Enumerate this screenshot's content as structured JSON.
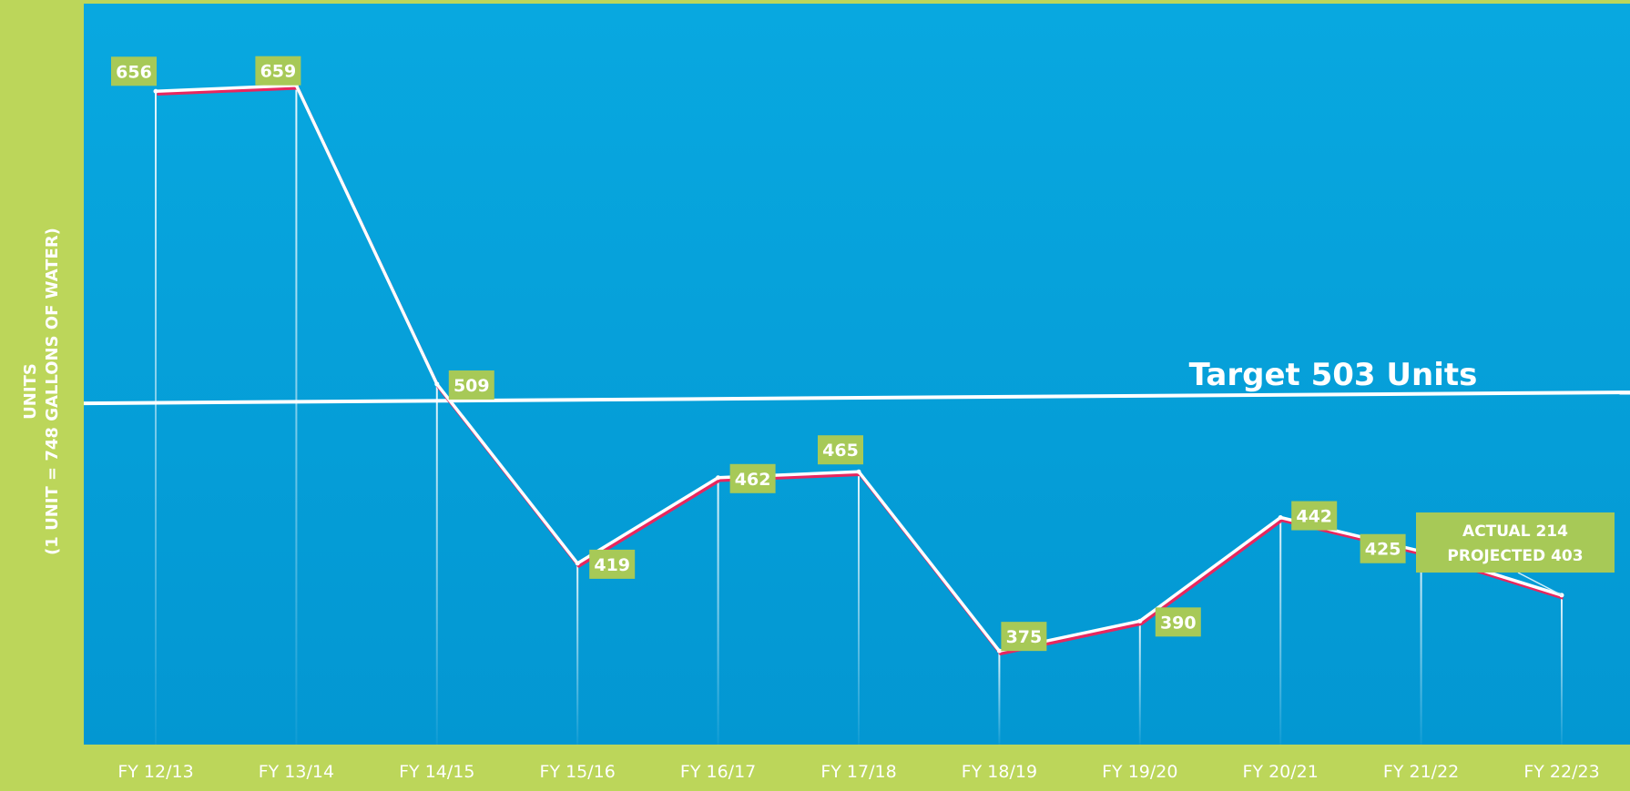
{
  "chart_data": {
    "type": "line",
    "categories": [
      "FY 12/13",
      "FY 13/14",
      "FY 14/15",
      "FY 15/16",
      "FY 16/17",
      "FY 17/18",
      "FY 18/19",
      "FY 19/20",
      "FY 20/21",
      "FY 21/22",
      "FY 22/23"
    ],
    "series": [
      {
        "values": [
          656,
          659,
          509,
          419,
          462,
          465,
          375,
          390,
          442,
          425,
          403
        ]
      }
    ],
    "data_labels": [
      "656",
      "659",
      "509",
      "419",
      "462",
      "465",
      "375",
      "390",
      "442",
      "425",
      ""
    ],
    "callout": {
      "line1": "ACTUAL 214",
      "line2": "PROJECTED 403"
    },
    "ylabel": {
      "line1": "UNITS",
      "line2": "(1 UNIT = 748 GALLONS OF WATER)"
    },
    "xlabel": "",
    "title": "",
    "ylim": [
      328,
      700
    ],
    "target": {
      "value": 503,
      "label": "Target 503 Units"
    },
    "grid": false,
    "legend": "none",
    "colors": {
      "page_background": "#bcd65a",
      "plot_background": "#05a3dd",
      "label_box": "#a7c957",
      "line": "#ffffff",
      "line_shadow": "#e8265e",
      "text": "#ffffff"
    }
  }
}
